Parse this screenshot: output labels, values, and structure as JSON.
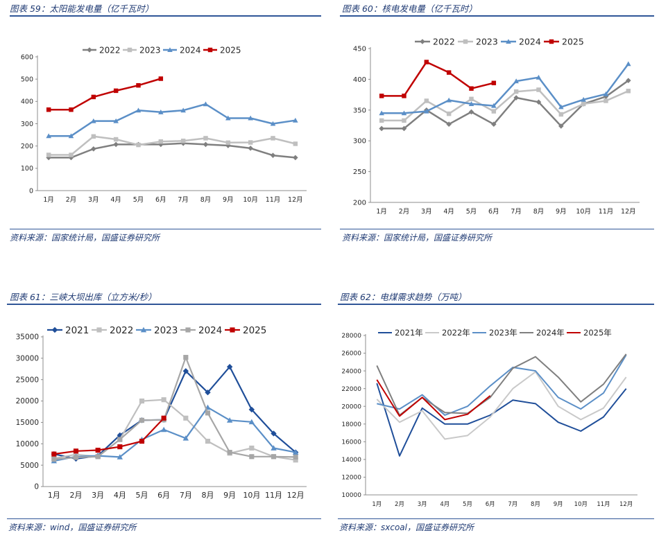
{
  "panels": [
    {
      "title": "图表 59：太阳能发电量（亿千瓦时）",
      "source": "资料来源：国家统计局，国盛证券研究所",
      "chart_data": {
        "type": "line",
        "categories": [
          "1月",
          "2月",
          "3月",
          "4月",
          "5月",
          "6月",
          "7月",
          "8月",
          "9月",
          "10月",
          "11月",
          "12月"
        ],
        "ylim": [
          0,
          600
        ],
        "yticks": [
          0,
          100,
          200,
          300,
          400,
          500,
          600
        ],
        "series": [
          {
            "name": "2022",
            "color": "#7f7f7f",
            "marker": "diamond",
            "values": [
              148,
              148,
              187,
              207,
              207,
              207,
              212,
              207,
              202,
              190,
              158,
              148
            ]
          },
          {
            "name": "2023",
            "color": "#bfbfbf",
            "marker": "square",
            "values": [
              160,
              160,
              243,
              230,
              205,
              220,
              223,
              235,
              215,
              216,
              235,
              210
            ]
          },
          {
            "name": "2024",
            "color": "#5b8fc7",
            "marker": "triangle",
            "values": [
              245,
              245,
              312,
              312,
              360,
              352,
              360,
              388,
              325,
              325,
              300,
              315
            ]
          },
          {
            "name": "2025",
            "color": "#c00000",
            "marker": "square",
            "values": [
              363,
              363,
              420,
              448,
              472,
              502,
              null,
              null,
              null,
              null,
              null,
              null
            ]
          }
        ]
      }
    },
    {
      "title": "图表 60：核电发电量（亿千瓦时）",
      "source": "资料来源：国家统计局，国盛证券研究所",
      "chart_data": {
        "type": "line",
        "categories": [
          "1月",
          "2月",
          "3月",
          "4月",
          "5月",
          "6月",
          "7月",
          "8月",
          "9月",
          "10月",
          "11月",
          "12月"
        ],
        "ylim": [
          200,
          450
        ],
        "yticks": [
          200,
          250,
          300,
          350,
          400,
          450
        ],
        "series": [
          {
            "name": "2022",
            "color": "#7f7f7f",
            "marker": "diamond",
            "values": [
              320,
              320,
              350,
              327,
              347,
              327,
              370,
              363,
              324,
              360,
              372,
              398
            ]
          },
          {
            "name": "2023",
            "color": "#bfbfbf",
            "marker": "square",
            "values": [
              333,
              333,
              365,
              344,
              368,
              348,
              380,
              383,
              343,
              360,
              365,
              381
            ]
          },
          {
            "name": "2024",
            "color": "#5b8fc7",
            "marker": "triangle",
            "values": [
              345,
              345,
              348,
              366,
              360,
              357,
              397,
              403,
              355,
              367,
              376,
              425
            ]
          },
          {
            "name": "2025",
            "color": "#c00000",
            "marker": "square",
            "values": [
              373,
              373,
              428,
              411,
              385,
              394,
              null,
              null,
              null,
              null,
              null,
              null
            ]
          }
        ]
      }
    },
    {
      "title": "图表 61：三峡大坝出库（立方米/秒）",
      "source": "资料来源：wind，国盛证券研究所",
      "chart_data": {
        "type": "line",
        "categories": [
          "1月",
          "2月",
          "3月",
          "4月",
          "5月",
          "6月",
          "7月",
          "8月",
          "9月",
          "10月",
          "11月",
          "12月"
        ],
        "ylim": [
          0,
          35000
        ],
        "yticks": [
          0,
          5000,
          10000,
          15000,
          20000,
          25000,
          30000,
          35000
        ],
        "series": [
          {
            "name": "2021",
            "color": "#1f4e99",
            "marker": "diamond",
            "values": [
              7600,
              6500,
              7200,
              12000,
              15500,
              15600,
              27000,
              22000,
              28000,
              18000,
              12400,
              8000
            ]
          },
          {
            "name": "2022",
            "color": "#bfbfbf",
            "marker": "square",
            "values": [
              6600,
              7500,
              7000,
              11000,
              20000,
              20300,
              16000,
              10600,
              7800,
              9000,
              7000,
              6200
            ]
          },
          {
            "name": "2023",
            "color": "#5b8fc7",
            "marker": "triangle",
            "values": [
              6000,
              7000,
              7200,
              6900,
              11000,
              13300,
              11300,
              18500,
              15500,
              15100,
              9000,
              8000
            ]
          },
          {
            "name": "2024",
            "color": "#a6a6a6",
            "marker": "square",
            "values": [
              6400,
              6800,
              7000,
              11000,
              15500,
              15600,
              30200,
              17200,
              8000,
              7000,
              7000,
              6900
            ]
          },
          {
            "name": "2025",
            "color": "#c00000",
            "marker": "square",
            "values": [
              7600,
              8300,
              8500,
              9300,
              10600,
              16000,
              null,
              null,
              null,
              null,
              null,
              null
            ]
          }
        ]
      }
    },
    {
      "title": "图表 62：电煤需求趋势（万吨）",
      "source": "资料来源：sxcoal，国盛证券研究所",
      "chart_data": {
        "type": "line",
        "categories": [
          "1月",
          "2月",
          "3月",
          "4月",
          "5月",
          "6月",
          "7月",
          "8月",
          "9月",
          "10月",
          "11月",
          "12月"
        ],
        "ylim": [
          10000,
          28000
        ],
        "yticks": [
          10000,
          12000,
          14000,
          16000,
          18000,
          20000,
          22000,
          24000,
          26000,
          28000
        ],
        "series": [
          {
            "name": "2021年",
            "color": "#1f4e99",
            "marker": "none",
            "values": [
              22600,
              14400,
              19800,
              18000,
              18000,
              19000,
              20700,
              20300,
              18200,
              17200,
              18800,
              22000
            ]
          },
          {
            "name": "2022年",
            "color": "#c9c9c9",
            "marker": "none",
            "values": [
              20800,
              18200,
              19500,
              16300,
              16700,
              18800,
              22000,
              23900,
              20000,
              18500,
              19800,
              23300
            ]
          },
          {
            "name": "2023年",
            "color": "#5b8fc7",
            "marker": "none",
            "values": [
              20300,
              19700,
              21300,
              19000,
              20000,
              22300,
              24400,
              24000,
              21000,
              19700,
              21500,
              25800
            ]
          },
          {
            "name": "2024年",
            "color": "#7f7f7f",
            "marker": "none",
            "values": [
              24600,
              19000,
              21000,
              19300,
              19200,
              21000,
              24300,
              25600,
              23300,
              20500,
              22500,
              25900
            ]
          },
          {
            "name": "2025年",
            "color": "#c00000",
            "marker": "none",
            "values": [
              23000,
              18900,
              21000,
              18500,
              19100,
              21200,
              null,
              null,
              null,
              null,
              null,
              null
            ]
          }
        ]
      }
    }
  ]
}
